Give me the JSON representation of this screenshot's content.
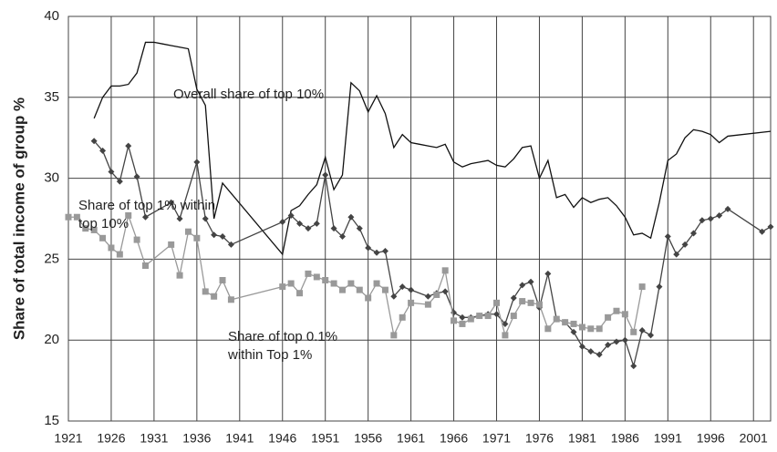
{
  "chart_data": {
    "type": "line",
    "y_label": "Share of total income of group %",
    "xlim": [
      1921,
      2003
    ],
    "xticks": [
      1921,
      1926,
      1931,
      1936,
      1941,
      1946,
      1951,
      1956,
      1961,
      1966,
      1971,
      1976,
      1981,
      1986,
      1991,
      1996,
      2001
    ],
    "ylim": [
      15,
      40
    ],
    "yticks": [
      15,
      20,
      25,
      30,
      35,
      40
    ],
    "grid": true,
    "annotations": [
      [
        "Overall share of top 10%"
      ],
      [
        "Share of top 1% within",
        "top 10%"
      ],
      [
        "Share of top 0.1%",
        "within Top 1%"
      ]
    ],
    "series": [
      {
        "name": "Overall share of top 10%",
        "color": "#111111",
        "marker": "none",
        "x": [
          1924,
          1925,
          1926,
          1927,
          1928,
          1929,
          1930,
          1931,
          1932,
          1933,
          1934,
          1935,
          1936,
          1937,
          1938,
          1939,
          1946,
          1947,
          1948,
          1949,
          1950,
          1951,
          1952,
          1953,
          1954,
          1955,
          1956,
          1957,
          1958,
          1959,
          1960,
          1961,
          1962,
          1963,
          1964,
          1965,
          1966,
          1967,
          1968,
          1969,
          1970,
          1971,
          1972,
          1973,
          1974,
          1975,
          1976,
          1977,
          1978,
          1979,
          1980,
          1981,
          1982,
          1983,
          1984,
          1985,
          1986,
          1987,
          1988,
          1989,
          1990,
          1991,
          1992,
          1993,
          1994,
          1995,
          1996,
          1997,
          1998,
          2003
        ],
        "values": [
          33.7,
          35,
          35.7,
          35.7,
          35.8,
          36.5,
          38.4,
          38.4,
          38.3,
          38.2,
          38.1,
          38.0,
          35.5,
          34.5,
          27.5,
          29.7,
          25.3,
          28.0,
          28.3,
          29.0,
          29.6,
          31.3,
          29.3,
          30.2,
          35.9,
          35.4,
          34.1,
          35.1,
          34.0,
          31.9,
          32.7,
          32.2,
          32.1,
          32.0,
          31.9,
          32.1,
          31.0,
          30.7,
          30.9,
          31.0,
          31.1,
          30.8,
          30.7,
          31.2,
          31.9,
          32.0,
          30.0,
          31.1,
          28.8,
          29.0,
          28.2,
          28.8,
          28.5,
          28.7,
          28.8,
          28.3,
          27.6,
          26.5,
          26.6,
          26.3,
          28.5,
          31.1,
          31.5,
          32.5,
          33.0,
          32.9,
          32.7,
          32.2,
          32.6,
          32.9
        ]
      },
      {
        "name": "Share of top 1% within top 10%",
        "color": "#444444",
        "marker": "diamond",
        "x": [
          1924,
          1925,
          1926,
          1927,
          1928,
          1929,
          1930,
          1933,
          1934,
          1936,
          1937,
          1938,
          1939,
          1940,
          1946,
          1947,
          1948,
          1949,
          1950,
          1951,
          1952,
          1953,
          1954,
          1955,
          1956,
          1957,
          1958,
          1959,
          1960,
          1961,
          1963,
          1964,
          1965,
          1966,
          1967,
          1968,
          1969,
          1970,
          1971,
          1972,
          1973,
          1974,
          1975,
          1976,
          1977,
          1978,
          1979,
          1980,
          1981,
          1982,
          1983,
          1984,
          1985,
          1986,
          1987,
          1988,
          1989,
          1990,
          1991,
          1992,
          1993,
          1994,
          1995,
          1996,
          1997,
          1998,
          2002,
          2003
        ],
        "values": [
          32.3,
          31.7,
          30.4,
          29.8,
          32.0,
          30.1,
          27.6,
          28.5,
          27.5,
          31.0,
          27.5,
          26.5,
          26.4,
          25.9,
          27.3,
          27.7,
          27.2,
          26.9,
          27.2,
          30.2,
          26.9,
          26.4,
          27.6,
          26.9,
          25.7,
          25.4,
          25.5,
          22.7,
          23.3,
          23.1,
          22.7,
          22.9,
          23.0,
          21.7,
          21.4,
          21.4,
          21.5,
          21.6,
          21.6,
          21.0,
          22.6,
          23.4,
          23.6,
          22.0,
          24.1,
          21.3,
          21.1,
          20.5,
          19.6,
          19.3,
          19.1,
          19.7,
          19.9,
          20.0,
          18.4,
          20.6,
          20.3,
          23.3,
          26.4,
          25.3,
          25.9,
          26.6,
          27.4,
          27.5,
          27.7,
          28.1,
          26.7,
          27.0
        ]
      },
      {
        "name": "Share of top 0.1% within Top 1%",
        "color": "#999999",
        "marker": "square",
        "x": [
          1921,
          1922,
          1923,
          1924,
          1925,
          1926,
          1927,
          1928,
          1929,
          1930,
          1933,
          1934,
          1935,
          1936,
          1937,
          1938,
          1939,
          1940,
          1946,
          1947,
          1948,
          1949,
          1950,
          1951,
          1952,
          1953,
          1954,
          1955,
          1956,
          1957,
          1958,
          1959,
          1960,
          1961,
          1963,
          1964,
          1965,
          1966,
          1967,
          1968,
          1969,
          1970,
          1971,
          1972,
          1973,
          1974,
          1975,
          1976,
          1977,
          1978,
          1979,
          1980,
          1981,
          1982,
          1983,
          1984,
          1985,
          1986,
          1987,
          1988
        ],
        "values": [
          27.6,
          27.6,
          26.9,
          26.8,
          26.3,
          25.7,
          25.3,
          27.7,
          26.2,
          24.6,
          25.9,
          24.0,
          26.7,
          26.3,
          23.0,
          22.7,
          23.7,
          22.5,
          23.3,
          23.5,
          22.9,
          24.1,
          23.9,
          23.7,
          23.5,
          23.1,
          23.5,
          23.1,
          22.6,
          23.5,
          23.1,
          20.3,
          21.4,
          22.3,
          22.2,
          22.8,
          24.3,
          21.2,
          21.0,
          21.3,
          21.5,
          21.5,
          22.3,
          20.3,
          21.5,
          22.4,
          22.3,
          22.2,
          20.7,
          21.3,
          21.1,
          21.0,
          20.8,
          20.7,
          20.7,
          21.4,
          21.8,
          21.6,
          20.5,
          23.3
        ]
      }
    ]
  }
}
